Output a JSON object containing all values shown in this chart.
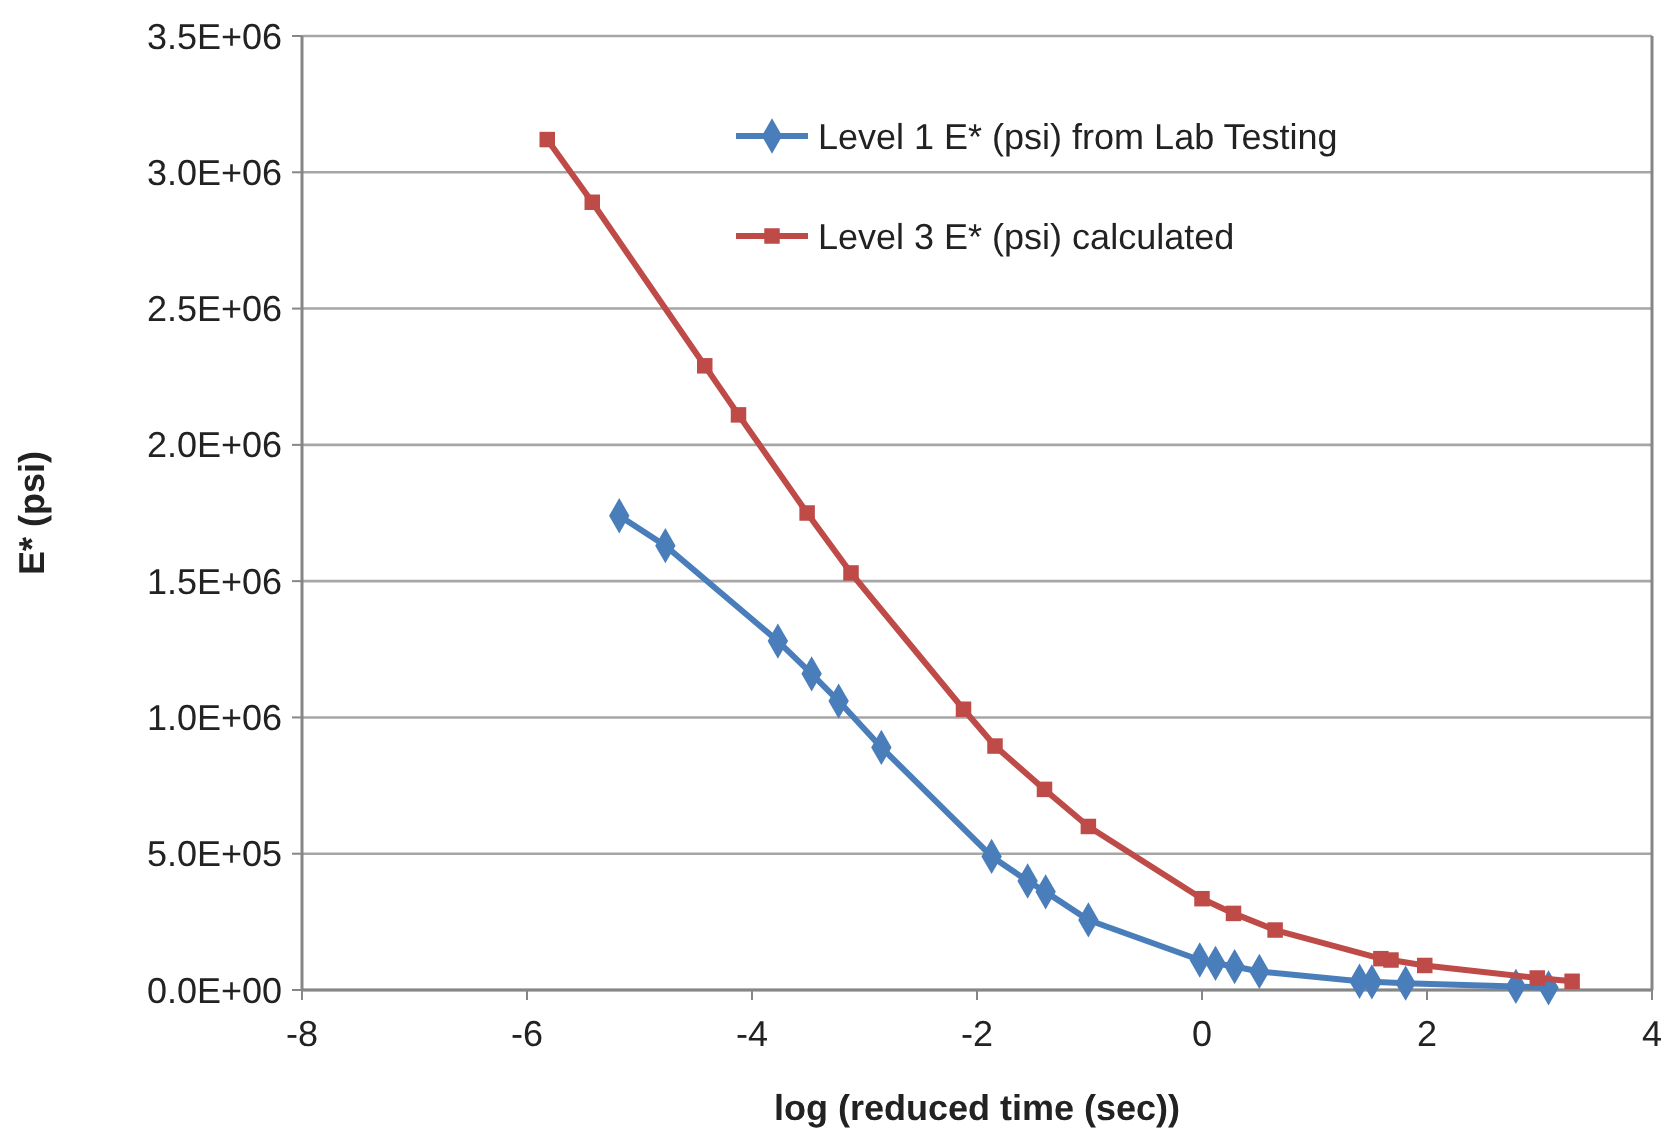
{
  "chart_data": {
    "type": "line",
    "xlabel": "log (reduced time (sec))",
    "ylabel": "E* (psi)",
    "xlim": [
      -8,
      4
    ],
    "xticks": [
      -8,
      -6,
      -4,
      -2,
      0,
      2,
      4
    ],
    "ylim": [
      0,
      3500000
    ],
    "yticks": [
      {
        "value": 0,
        "label": "0.0E+00"
      },
      {
        "value": 500000,
        "label": "5.0E+05"
      },
      {
        "value": 1000000,
        "label": "1.0E+06"
      },
      {
        "value": 1500000,
        "label": "1.5E+06"
      },
      {
        "value": 2000000,
        "label": "2.0E+06"
      },
      {
        "value": 2500000,
        "label": "2.5E+06"
      },
      {
        "value": 3000000,
        "label": "3.0E+06"
      },
      {
        "value": 3500000,
        "label": "3.5E+06"
      }
    ],
    "grid": "y",
    "legend": "top right",
    "series": [
      {
        "name": "Level 1 E* (psi) from Lab Testing",
        "color": "#4a7ebb",
        "marker": "diamond",
        "x": [
          -5.18,
          -4.77,
          -3.77,
          -3.47,
          -3.23,
          -2.85,
          -1.87,
          -1.55,
          -1.39,
          -1.01,
          -0.02,
          0.12,
          0.29,
          0.51,
          1.4,
          1.51,
          1.81,
          2.79,
          3.08
        ],
        "values": [
          1740000,
          1630000,
          1280000,
          1160000,
          1060000,
          890000,
          490000,
          400000,
          360000,
          257000,
          110000,
          98000,
          86000,
          68000,
          32000,
          30000,
          25000,
          13000,
          8000
        ]
      },
      {
        "name": "Level 3 E* (psi) calculated",
        "color": "#be4b48",
        "marker": "square",
        "x": [
          -5.82,
          -5.42,
          -4.42,
          -4.12,
          -3.51,
          -3.12,
          -2.12,
          -1.84,
          -1.4,
          -1.01,
          0.0,
          0.28,
          0.65,
          1.59,
          1.68,
          1.98,
          2.98,
          3.29
        ],
        "values": [
          3120000,
          2890000,
          2290000,
          2110000,
          1750000,
          1530000,
          1030000,
          895000,
          736000,
          600000,
          335000,
          281000,
          220000,
          115000,
          110000,
          90000,
          44000,
          32000
        ]
      }
    ]
  }
}
